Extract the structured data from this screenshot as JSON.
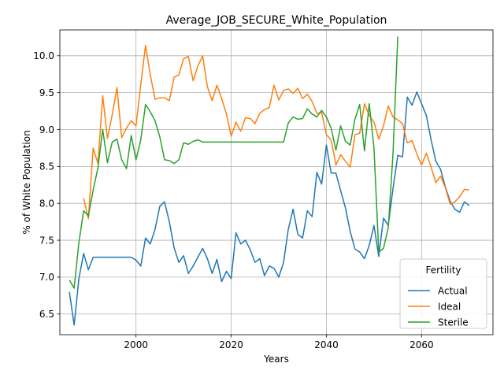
{
  "chart_data": {
    "type": "line",
    "title": "Average_JOB_SECURE_White_Population",
    "xlabel": "Years",
    "ylabel": "% of White Population",
    "xlim": [
      1984,
      2075
    ],
    "ylim": [
      6.22,
      10.35
    ],
    "xticks": [
      2000,
      2020,
      2040,
      2060
    ],
    "yticks": [
      6.5,
      7.0,
      7.5,
      8.0,
      8.5,
      9.0,
      9.5,
      10.0
    ],
    "grid": true,
    "legend": {
      "title": "Fertility",
      "placement": "lower-right"
    },
    "x": [
      1986,
      1987,
      1988,
      1989,
      1990,
      1991,
      1992,
      1993,
      1994,
      1995,
      1996,
      1997,
      1998,
      1999,
      2000,
      2001,
      2002,
      2003,
      2004,
      2005,
      2006,
      2007,
      2008,
      2009,
      2010,
      2011,
      2012,
      2013,
      2014,
      2015,
      2016,
      2017,
      2018,
      2019,
      2020,
      2021,
      2022,
      2023,
      2024,
      2025,
      2026,
      2027,
      2028,
      2029,
      2030,
      2031,
      2032,
      2033,
      2034,
      2035,
      2036,
      2037,
      2038,
      2039,
      2040,
      2041,
      2042,
      2043,
      2044,
      2045,
      2046,
      2047,
      2048,
      2049,
      2050,
      2051,
      2052,
      2053,
      2054,
      2055,
      2056,
      2057,
      2058,
      2059,
      2060,
      2061,
      2062,
      2063,
      2064,
      2065,
      2066,
      2067,
      2068,
      2069,
      2070
    ],
    "series": [
      {
        "name": "Actual",
        "color": "#1f77b4",
        "values": [
          6.8,
          6.35,
          6.98,
          7.32,
          7.1,
          7.27,
          7.27,
          7.27,
          7.27,
          7.27,
          7.27,
          7.27,
          7.27,
          7.27,
          7.23,
          7.15,
          7.53,
          7.45,
          7.65,
          7.96,
          8.02,
          7.75,
          7.4,
          7.2,
          7.29,
          7.05,
          7.15,
          7.27,
          7.39,
          7.25,
          7.05,
          7.24,
          6.94,
          7.08,
          6.98,
          7.6,
          7.45,
          7.5,
          7.37,
          7.2,
          7.25,
          7.02,
          7.15,
          7.12,
          7.0,
          7.2,
          7.65,
          7.92,
          7.58,
          7.53,
          7.9,
          7.82,
          8.42,
          8.26,
          8.79,
          8.41,
          8.41,
          8.17,
          7.94,
          7.62,
          7.38,
          7.34,
          7.25,
          7.43,
          7.7,
          7.28,
          7.8,
          7.7,
          8.2,
          8.65,
          8.63,
          9.44,
          9.33,
          9.51,
          9.35,
          9.19,
          8.86,
          8.57,
          8.46,
          8.22,
          8.03,
          7.92,
          7.88,
          8.02,
          7.97
        ]
      },
      {
        "name": "Ideal",
        "color": "#ff7f0e",
        "values": [
          null,
          null,
          null,
          8.07,
          7.79,
          8.75,
          8.54,
          9.46,
          8.88,
          9.2,
          9.57,
          8.89,
          9.02,
          9.12,
          9.05,
          9.61,
          10.14,
          9.74,
          9.41,
          9.43,
          9.43,
          9.39,
          9.71,
          9.74,
          9.96,
          9.99,
          9.66,
          9.86,
          10.0,
          9.58,
          9.39,
          9.6,
          9.42,
          9.21,
          8.91,
          9.1,
          8.98,
          9.16,
          9.15,
          9.08,
          9.22,
          9.27,
          9.3,
          9.6,
          9.4,
          9.53,
          9.55,
          9.49,
          9.56,
          9.42,
          9.48,
          9.38,
          9.22,
          9.23,
          8.93,
          8.86,
          8.52,
          8.66,
          8.57,
          8.49,
          8.93,
          8.95,
          9.35,
          9.19,
          9.1,
          8.87,
          9.05,
          9.32,
          9.17,
          9.13,
          9.08,
          8.82,
          8.85,
          8.67,
          8.52,
          8.68,
          8.49,
          8.28,
          8.37,
          8.21,
          7.99,
          8.02,
          8.09,
          8.19,
          8.18
        ]
      },
      {
        "name": "Sterile",
        "color": "#2ca02c",
        "values": [
          6.96,
          6.85,
          7.47,
          7.9,
          7.83,
          8.18,
          8.48,
          9.0,
          8.55,
          8.83,
          8.87,
          8.59,
          8.47,
          8.92,
          8.59,
          8.86,
          9.34,
          9.24,
          9.12,
          8.9,
          8.59,
          8.58,
          8.54,
          8.59,
          8.82,
          8.8,
          8.84,
          8.86,
          8.83,
          8.83,
          8.83,
          8.83,
          8.83,
          8.83,
          8.83,
          8.83,
          8.83,
          8.83,
          8.83,
          8.83,
          8.83,
          8.83,
          8.83,
          8.83,
          8.83,
          8.83,
          9.09,
          9.17,
          9.14,
          9.15,
          9.28,
          9.21,
          9.17,
          9.26,
          9.17,
          9.02,
          8.72,
          9.05,
          8.84,
          8.79,
          9.14,
          9.34,
          8.71,
          9.35,
          8.75,
          7.34,
          7.39,
          7.67,
          8.68,
          10.26,
          null,
          null,
          null,
          null,
          null,
          null,
          null,
          null,
          null,
          null,
          null,
          null,
          null,
          null,
          null
        ]
      }
    ]
  }
}
